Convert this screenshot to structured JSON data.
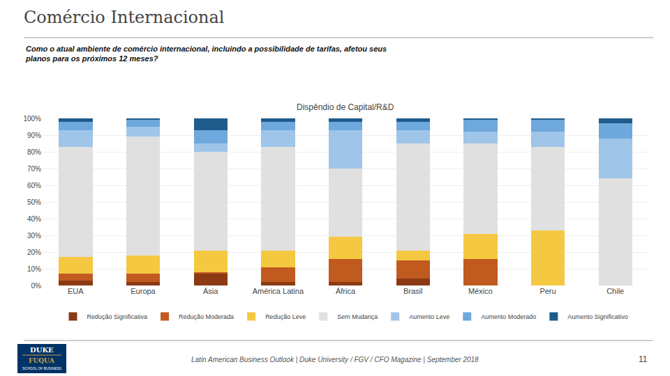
{
  "chart_data": {
    "type": "bar",
    "stacked": true,
    "title": "Comércio Internacional",
    "subtitle": "Como o atual ambiente de comércio internacional, incluindo a possibilidade de tarifas, afetou seus\nplanos para os próximos 12 meses?",
    "annotations": [
      "Dispêndio de Capital/R&D",
      "Latin American Business Outlook | Duke University / FGV / CFO Magazine | September 2018",
      "11",
      "DUKE",
      "FUQUA",
      "SCHOOL OF BUSINESS"
    ],
    "categories": [
      "EUA",
      "Europa",
      "Ásia",
      "América Latina",
      "África",
      "Brasil",
      "México",
      "Peru",
      "Chile"
    ],
    "series": [
      {
        "name": "Redução Significativa",
        "color": "#8B3A13",
        "values": [
          3,
          2,
          7,
          2,
          2,
          4,
          0,
          0,
          0
        ]
      },
      {
        "name": "Redução Moderada",
        "color": "#C05A1F",
        "values": [
          4,
          5,
          1,
          9,
          14,
          11,
          16,
          0,
          0
        ]
      },
      {
        "name": "Redução Leve",
        "color": "#F5C842",
        "values": [
          10,
          11,
          13,
          10,
          13,
          6,
          15,
          33,
          0
        ]
      },
      {
        "name": "Sem Mudança",
        "color": "#E0E0E0",
        "values": [
          66,
          71,
          59,
          62,
          41,
          64,
          54,
          50,
          64
        ]
      },
      {
        "name": "Aumento Leve",
        "color": "#9FC5E8",
        "values": [
          10,
          6,
          5,
          10,
          23,
          8,
          7,
          9,
          24
        ]
      },
      {
        "name": "Aumento Moderado",
        "color": "#6FA8DC",
        "values": [
          5,
          4,
          8,
          5,
          5,
          5,
          7,
          7,
          9
        ]
      },
      {
        "name": "Aumento Significativo",
        "color": "#1F5C8B",
        "values": [
          2,
          1,
          7,
          2,
          2,
          2,
          1,
          1,
          3
        ]
      }
    ],
    "ylim": [
      0,
      100
    ],
    "yticks": [
      {
        "value": 0,
        "label": "0%"
      },
      {
        "value": 10,
        "label": "10%"
      },
      {
        "value": 20,
        "label": "20%"
      },
      {
        "value": 30,
        "label": "30%"
      },
      {
        "value": 40,
        "label": "40%"
      },
      {
        "value": 50,
        "label": "50%"
      },
      {
        "value": 60,
        "label": "60%"
      },
      {
        "value": 70,
        "label": "70%"
      },
      {
        "value": 80,
        "label": "80%"
      },
      {
        "value": 90,
        "label": "90%"
      },
      {
        "value": 100,
        "label": "100%"
      }
    ],
    "grid": true,
    "legend": "bottom"
  }
}
